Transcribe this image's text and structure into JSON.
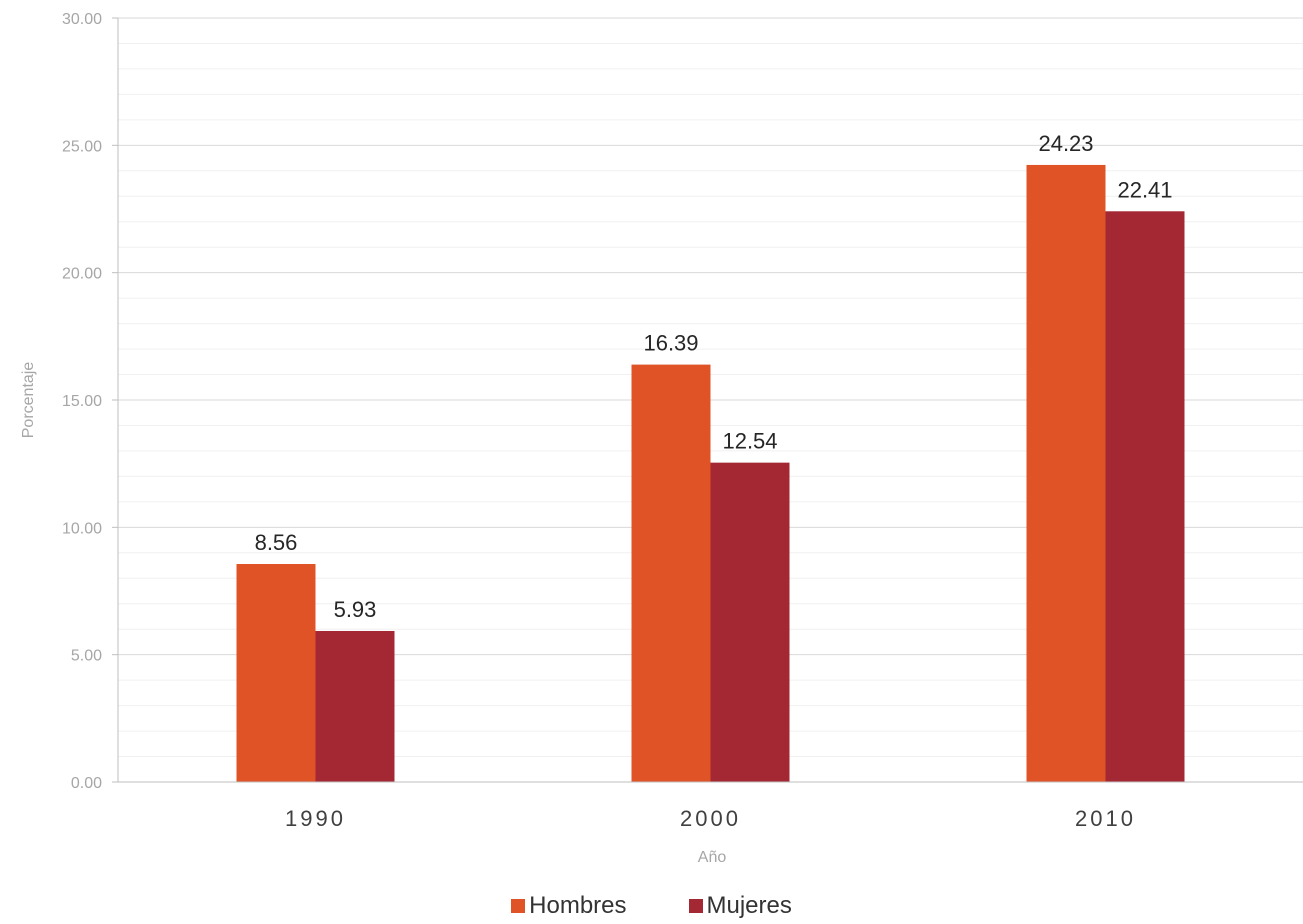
{
  "chart_data": {
    "type": "bar",
    "categories": [
      "1990",
      "2000",
      "2010"
    ],
    "series": [
      {
        "name": "Hombres",
        "values": [
          8.56,
          16.39,
          24.23
        ],
        "color": "#e05326"
      },
      {
        "name": "Mujeres",
        "values": [
          5.93,
          12.54,
          22.41
        ],
        "color": "#a32833"
      }
    ],
    "xlabel": "Año",
    "ylabel": "Porcentaje",
    "ylim": [
      0,
      30
    ],
    "yticks": [
      "0.00",
      "5.00",
      "10.00",
      "15.00",
      "20.00",
      "25.00",
      "30.00"
    ],
    "data_labels": [
      [
        "8.56",
        "16.39",
        "24.23"
      ],
      [
        "5.93",
        "12.54",
        "22.41"
      ]
    ],
    "grid": true,
    "legend_position": "bottom"
  }
}
